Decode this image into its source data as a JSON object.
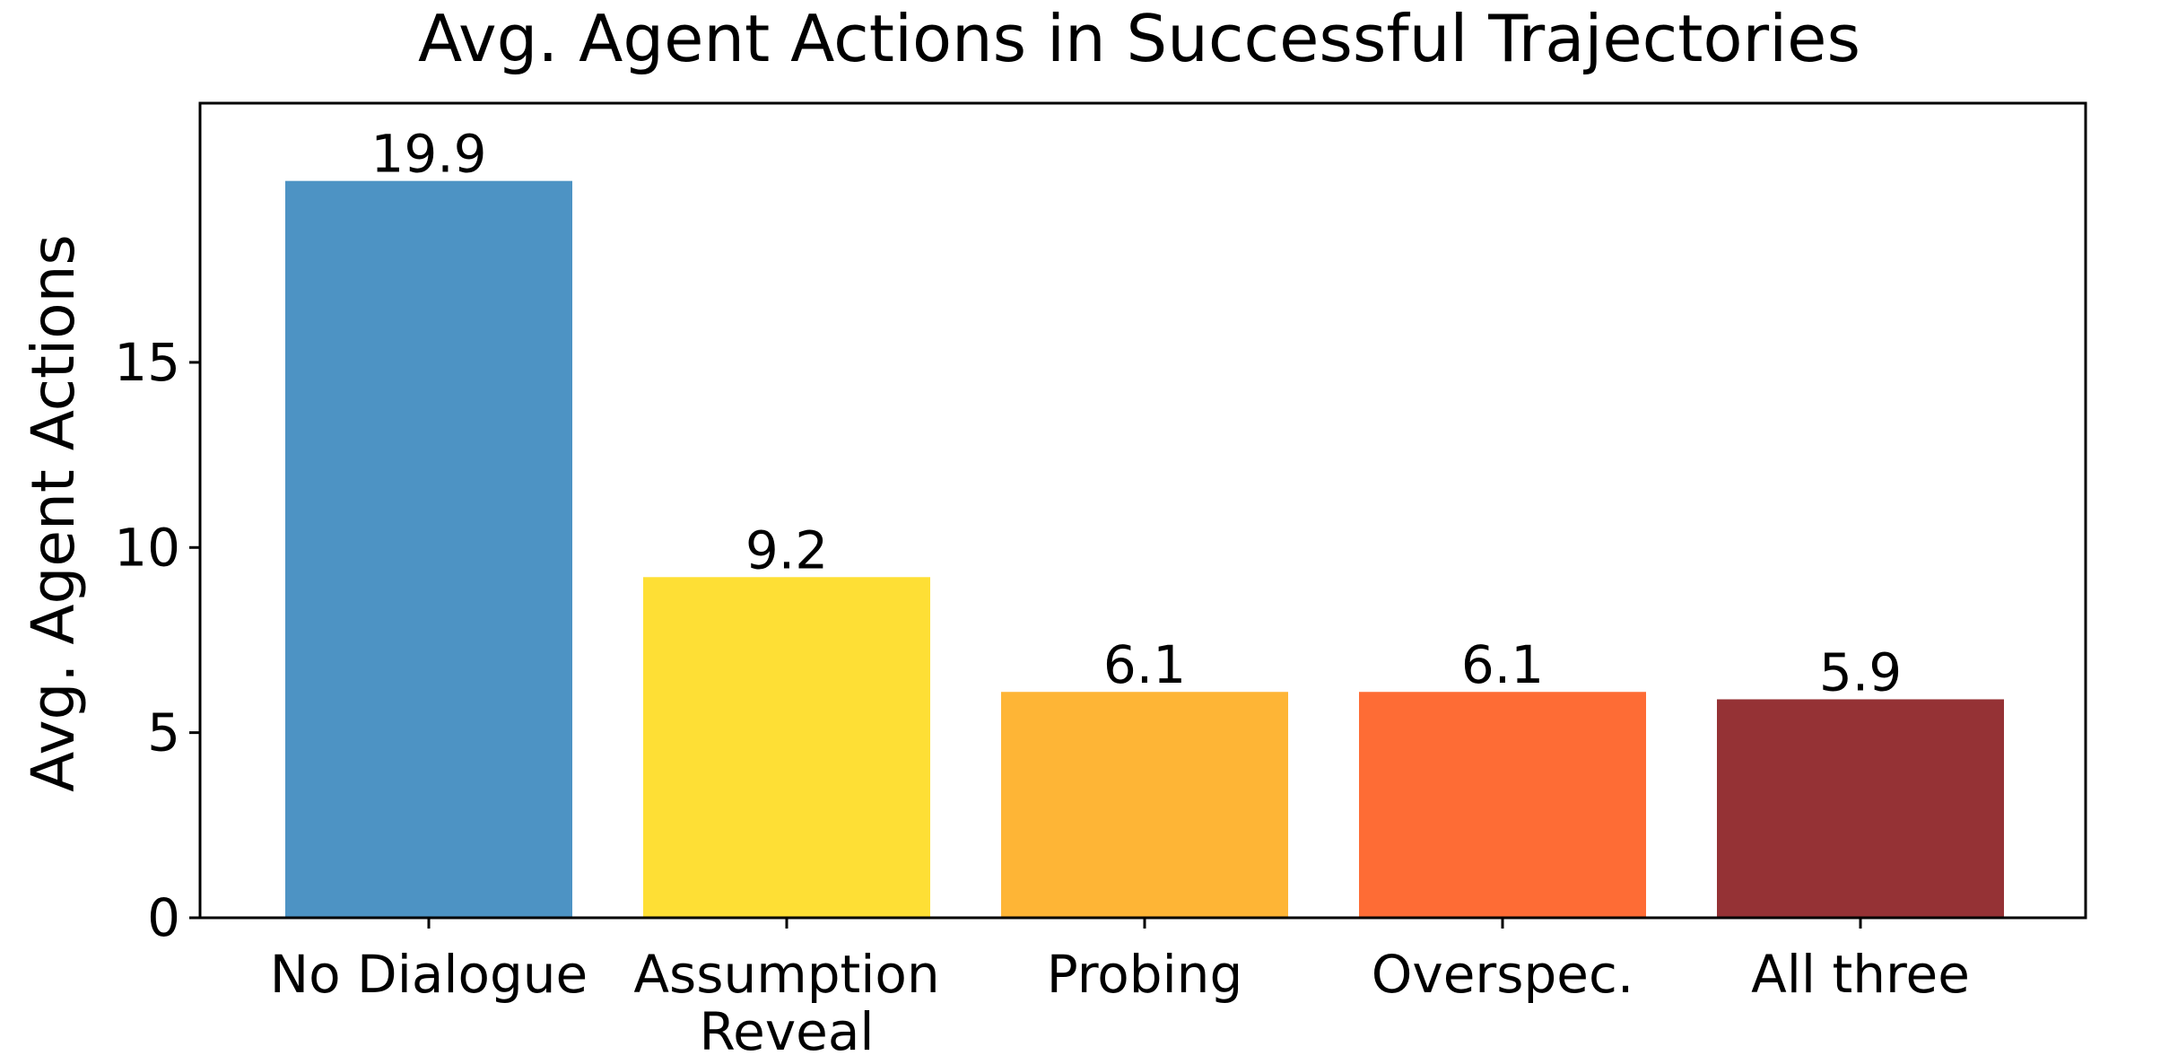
{
  "chart_data": {
    "type": "bar",
    "title": "Avg. Agent Actions in Successful Trajectories",
    "xlabel": "",
    "ylabel": "Avg. Agent Actions",
    "categories": [
      [
        "No Dialogue"
      ],
      [
        "Assumption",
        "Reveal"
      ],
      [
        "Probing"
      ],
      [
        "Overspec."
      ],
      [
        "All three"
      ]
    ],
    "values": [
      19.9,
      9.2,
      6.1,
      6.1,
      5.9
    ],
    "value_labels": [
      "19.9",
      "9.2",
      "6.1",
      "6.1",
      "5.9"
    ],
    "colors": [
      "#4d93c4",
      "#fedf35",
      "#feb536",
      "#fe6c35",
      "#953235"
    ],
    "ylim": [
      0,
      22
    ],
    "yticks": [
      0,
      5,
      10,
      15
    ],
    "ytick_labels": [
      "0",
      "5",
      "10",
      "15"
    ],
    "grid": false,
    "legend": "none"
  }
}
